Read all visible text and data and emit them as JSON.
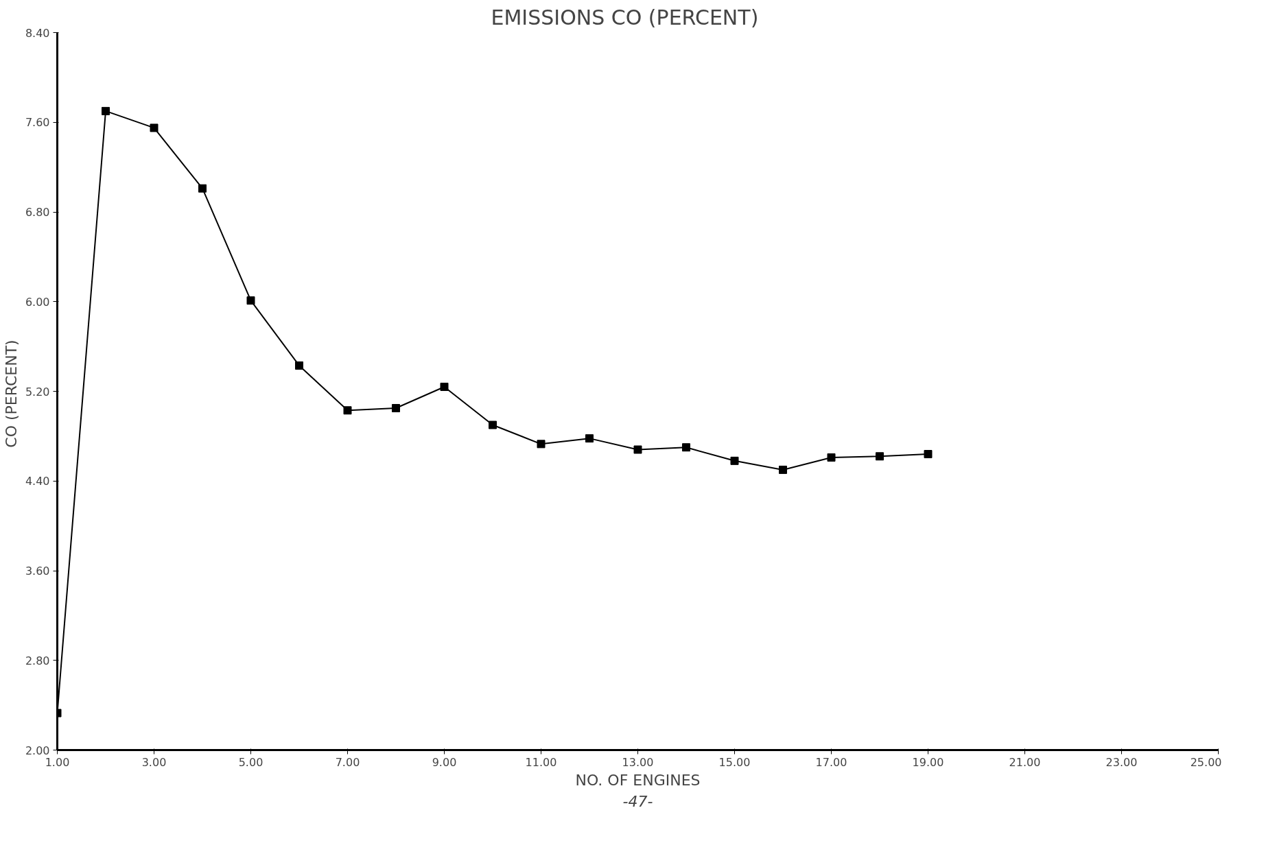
{
  "chart_data": {
    "type": "line",
    "title": "EMISSIONS     CO (PERCENT)",
    "xlabel": "NO. OF ENGINES",
    "ylabel": "CO  (PERCENT)",
    "annotations": [
      "-47-"
    ],
    "x": [
      1,
      2,
      3,
      4,
      5,
      6,
      7,
      8,
      9,
      10,
      11,
      12,
      13,
      14,
      15,
      16,
      17,
      18,
      19
    ],
    "series": [
      {
        "color": "#000000",
        "values": [
          2.33,
          7.7,
          7.55,
          7.01,
          6.01,
          5.43,
          5.03,
          5.05,
          5.24,
          4.9,
          4.73,
          4.78,
          4.68,
          4.7,
          4.58,
          4.5,
          4.61,
          4.62,
          4.64
        ]
      }
    ],
    "xlim": [
      1,
      25
    ],
    "ylim": [
      2,
      8.4
    ],
    "xticks": [
      {
        "value": 1,
        "label": "1.00"
      },
      {
        "value": 3,
        "label": "3.00"
      },
      {
        "value": 5,
        "label": "5.00"
      },
      {
        "value": 7,
        "label": "7.00"
      },
      {
        "value": 9,
        "label": "9.00"
      },
      {
        "value": 11,
        "label": "11.00"
      },
      {
        "value": 13,
        "label": "13.00"
      },
      {
        "value": 15,
        "label": "15.00"
      },
      {
        "value": 17,
        "label": "17.00"
      },
      {
        "value": 19,
        "label": "19.00"
      },
      {
        "value": 21,
        "label": "21.00"
      },
      {
        "value": 23,
        "label": "23.00"
      },
      {
        "value": 25,
        "label": "25.00"
      }
    ],
    "yticks": [
      {
        "value": 2,
        "label": "2.00"
      },
      {
        "value": 2.8,
        "label": "2.80"
      },
      {
        "value": 3.6,
        "label": "3.60"
      },
      {
        "value": 4.4,
        "label": "4.40"
      },
      {
        "value": 5.2,
        "label": "5.20"
      },
      {
        "value": 6,
        "label": "6.00"
      },
      {
        "value": 6.8,
        "label": "6.80"
      },
      {
        "value": 7.6,
        "label": "7.60"
      },
      {
        "value": 8.4,
        "label": "8.40"
      }
    ],
    "grid": false,
    "marker": "square",
    "line_style": "solid"
  }
}
